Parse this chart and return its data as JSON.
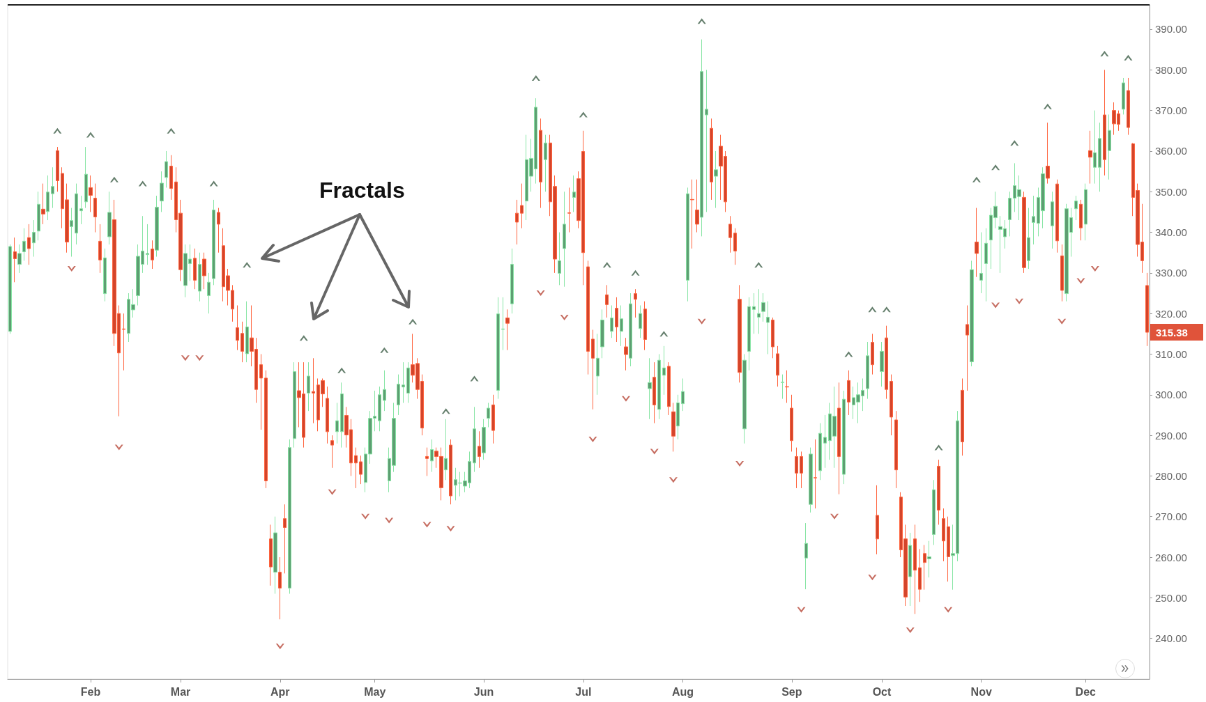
{
  "chart_data": {
    "type": "candlestick",
    "categories": [
      null,
      null,
      null,
      null,
      null,
      null,
      null,
      null,
      null,
      null,
      null,
      null,
      null,
      null,
      null,
      null,
      null,
      "Feb",
      null,
      null,
      null,
      null,
      null,
      null,
      null,
      null,
      null,
      null,
      null,
      null,
      null,
      null,
      null,
      null,
      null,
      null,
      "Mar",
      null,
      null,
      null,
      null,
      null,
      null,
      null,
      null,
      null,
      null,
      null,
      null,
      null,
      null,
      null,
      null,
      null,
      null,
      null,
      null,
      "Apr",
      null,
      null,
      null,
      null,
      null,
      null,
      null,
      null,
      null,
      null,
      null,
      null,
      null,
      null,
      null,
      null,
      null,
      null,
      null,
      "May",
      null,
      null,
      null,
      null,
      null,
      null,
      null,
      null,
      null,
      null,
      null,
      null,
      null,
      null,
      null,
      null,
      null,
      null,
      null,
      null,
      null,
      null,
      "Jun",
      null,
      null,
      null,
      null,
      null,
      null,
      null,
      null,
      null,
      null,
      null,
      null,
      null,
      null,
      null,
      null,
      null,
      null,
      null,
      null,
      "Jul",
      null,
      null,
      null,
      null,
      null,
      null,
      null,
      null,
      null,
      null,
      null,
      null,
      null,
      null,
      null,
      null,
      null,
      null,
      null,
      null,
      "Aug",
      null,
      null,
      null,
      null,
      null,
      null,
      null,
      null,
      null,
      null,
      null,
      null,
      null,
      null,
      null,
      null,
      null,
      null,
      null,
      null,
      null,
      null,
      "Sep",
      null,
      null,
      null,
      null,
      null,
      null,
      null,
      null,
      null,
      null,
      null,
      null,
      null,
      null,
      null,
      null,
      null,
      null,
      "Oct",
      null,
      null,
      null,
      null,
      null,
      null,
      null,
      null,
      null,
      null,
      null,
      null,
      null,
      null,
      null,
      null,
      null,
      null,
      null,
      null,
      "Nov",
      null,
      null,
      null,
      null,
      null,
      null,
      null,
      null,
      null,
      null,
      null,
      null,
      null,
      null,
      null,
      null,
      null,
      null,
      null,
      null,
      null,
      "Dec",
      null,
      null,
      null,
      null,
      null,
      null,
      null,
      null,
      null,
      null,
      null,
      null,
      null
    ],
    "ohlc": [
      [
        315.6,
        337,
        315,
        336.5
      ],
      [
        335.2,
        338.7,
        327.7,
        333.5
      ],
      [
        332.1,
        337,
        330,
        334.8
      ],
      [
        335.2,
        341,
        333,
        337.8
      ],
      [
        338.7,
        342,
        332,
        336
      ],
      [
        337.4,
        343,
        334,
        340
      ],
      [
        340.3,
        350,
        338,
        346.9
      ],
      [
        345.7,
        352,
        342,
        344.5
      ],
      [
        345.1,
        354,
        343,
        349.9
      ],
      [
        349.5,
        356,
        346,
        351.3
      ],
      [
        360.1,
        361,
        350,
        352.7
      ],
      [
        354.5,
        356,
        341,
        345.8
      ],
      [
        348,
        352,
        335,
        337.6
      ],
      [
        341.4,
        346,
        334,
        342.9
      ],
      [
        339.8,
        352,
        337,
        349.5
      ],
      [
        345.3,
        349,
        342,
        345.8
      ],
      [
        347.5,
        361,
        346,
        354.3
      ],
      [
        351,
        354,
        345,
        349.1
      ],
      [
        348.4,
        352,
        340,
        343.8
      ],
      [
        337.8,
        342,
        330,
        333.2
      ],
      [
        324.9,
        336,
        323,
        333.7
      ],
      [
        338.9,
        350,
        337,
        344.9
      ],
      [
        343.1,
        348,
        312,
        315.1
      ],
      [
        320,
        322,
        294.7,
        310.3
      ],
      [
        316.2,
        320,
        306,
        316.1
      ],
      [
        315.1,
        325,
        313,
        323.5
      ],
      [
        320.9,
        326,
        319,
        322.2
      ],
      [
        324.4,
        337,
        322,
        334.1
      ],
      [
        332.1,
        344,
        330,
        335.4
      ],
      [
        334.5,
        342,
        332,
        334.8
      ],
      [
        335.9,
        338,
        331,
        333.2
      ],
      [
        335.6,
        349,
        334,
        346.2
      ],
      [
        347.7,
        355,
        345,
        352.1
      ],
      [
        353.5,
        360,
        351,
        357.4
      ],
      [
        356.3,
        359,
        348,
        350.8
      ],
      [
        352.4,
        356,
        340,
        343.1
      ],
      [
        344.7,
        348,
        328,
        330.8
      ],
      [
        326.9,
        337,
        324,
        334.8
      ],
      [
        332.3,
        337,
        328,
        333.4
      ],
      [
        333.6,
        336,
        326,
        328.2
      ],
      [
        325.5,
        335,
        323,
        332.1
      ],
      [
        333.4,
        335,
        326,
        329.3
      ],
      [
        324.4,
        330,
        320,
        327.7
      ],
      [
        328.6,
        348,
        327,
        345.5
      ],
      [
        344.9,
        346,
        335,
        342
      ],
      [
        336.7,
        341,
        323,
        326.6
      ],
      [
        329.3,
        331,
        322,
        325.7
      ],
      [
        325.7,
        327,
        318,
        321.1
      ],
      [
        316.5,
        322,
        311,
        313.4
      ],
      [
        315.1,
        318,
        308,
        310.7
      ],
      [
        310.1,
        323,
        308,
        316.7
      ],
      [
        314,
        322,
        307,
        310.7
      ],
      [
        311.2,
        314,
        298,
        301.3
      ],
      [
        307.4,
        310,
        291.4,
        304.1
      ],
      [
        304.1,
        306,
        277,
        278.8
      ],
      [
        264.5,
        268,
        253,
        257.6
      ],
      [
        256.3,
        270,
        251,
        266
      ],
      [
        256.3,
        260,
        244.7,
        252.4
      ],
      [
        269.5,
        273,
        256,
        267.3
      ],
      [
        252.4,
        289,
        251,
        287
      ],
      [
        289.2,
        308,
        287,
        305.7
      ],
      [
        301,
        308,
        292,
        299.3
      ],
      [
        300.2,
        308,
        287,
        289.5
      ],
      [
        300.4,
        308,
        296,
        304.6
      ],
      [
        300.8,
        309,
        293,
        300.4
      ],
      [
        302.4,
        304,
        291,
        293.8
      ],
      [
        303.5,
        304,
        297,
        300.2
      ],
      [
        299.1,
        302,
        288,
        290.9
      ],
      [
        288.7,
        290,
        282,
        287.6
      ],
      [
        290.9,
        298,
        288,
        293.6
      ],
      [
        290.9,
        303,
        287,
        300.2
      ],
      [
        294.9,
        297,
        287,
        290.1
      ],
      [
        291.4,
        294,
        280,
        283.2
      ],
      [
        285,
        287,
        277,
        283.2
      ],
      [
        283.5,
        285,
        278,
        280.4
      ],
      [
        278.4,
        287,
        276,
        285.4
      ],
      [
        285.4,
        296,
        283,
        294.2
      ],
      [
        294.2,
        301,
        291,
        294.7
      ],
      [
        293.6,
        302,
        291,
        300
      ],
      [
        298.6,
        306,
        296,
        301.3
      ],
      [
        278.8,
        287,
        276,
        284.3
      ],
      [
        282.6,
        298,
        281,
        294.2
      ],
      [
        297.5,
        305,
        295,
        302.6
      ],
      [
        301.9,
        308,
        298,
        302.4
      ],
      [
        300.4,
        308,
        298,
        306.6
      ],
      [
        307.4,
        315,
        303,
        304.8
      ],
      [
        307.7,
        309,
        299,
        301.3
      ],
      [
        303.3,
        305,
        290,
        291.8
      ],
      [
        284.8,
        287,
        280,
        284.3
      ],
      [
        283.7,
        289,
        281,
        286.5
      ],
      [
        286.1,
        287,
        282,
        284.8
      ],
      [
        284.8,
        287,
        274,
        277.1
      ],
      [
        281.5,
        294,
        279,
        284.3
      ],
      [
        287.6,
        289,
        273,
        275.1
      ],
      [
        277.7,
        282,
        274,
        279.1
      ],
      [
        278.2,
        281,
        275,
        278.3
      ],
      [
        277.5,
        281,
        276,
        278.8
      ],
      [
        278.3,
        286,
        277,
        283.6
      ],
      [
        283.2,
        297,
        281,
        291.6
      ],
      [
        287.3,
        291,
        282,
        284.8
      ],
      [
        285.7,
        294,
        284,
        292
      ],
      [
        294.2,
        298,
        292,
        296.7
      ],
      [
        297.5,
        300,
        288,
        291.2
      ],
      [
        301.1,
        324,
        299,
        319.9
      ],
      [
        316.1,
        324,
        311,
        316.2
      ],
      [
        318.9,
        321,
        311,
        317.6
      ],
      [
        322.4,
        336,
        320,
        332.1
      ],
      [
        344.7,
        348,
        337,
        342.5
      ],
      [
        346.6,
        352,
        341,
        344.7
      ],
      [
        347.7,
        364,
        343,
        357.9
      ],
      [
        353.8,
        363,
        350,
        358.2
      ],
      [
        355.6,
        373,
        352,
        370.8
      ],
      [
        365.1,
        368,
        346,
        352.4
      ],
      [
        357.9,
        364,
        350,
        362
      ],
      [
        362,
        364,
        344,
        347.5
      ],
      [
        351.3,
        354,
        330,
        333.4
      ],
      [
        329.9,
        340,
        327,
        333
      ],
      [
        336,
        350,
        326.6,
        342
      ],
      [
        344.8,
        351,
        340,
        344.7
      ],
      [
        348.6,
        354,
        345,
        349.9
      ],
      [
        353.2,
        355,
        341,
        342.9
      ],
      [
        359.9,
        365,
        327,
        335
      ],
      [
        331.5,
        333,
        305,
        310.7
      ],
      [
        313.7,
        316,
        296.4,
        309
      ],
      [
        304.6,
        315,
        300,
        309
      ],
      [
        311.8,
        321,
        309,
        318.4
      ],
      [
        324.6,
        327,
        319,
        322.2
      ],
      [
        315.6,
        322,
        314,
        318.9
      ],
      [
        321.3,
        324,
        313,
        316.7
      ],
      [
        315.6,
        322,
        312,
        318.7
      ],
      [
        311.8,
        314,
        306,
        309.9
      ],
      [
        309,
        325,
        307,
        322.4
      ],
      [
        324.9,
        326,
        319,
        323.5
      ],
      [
        316.3,
        322,
        314,
        320
      ],
      [
        321.1,
        323,
        311,
        313.6
      ],
      [
        301.5,
        309,
        294,
        303
      ],
      [
        304.3,
        308,
        293,
        297.5
      ],
      [
        296.4,
        310,
        294,
        308.5
      ],
      [
        304.8,
        312,
        300,
        306.6
      ],
      [
        307,
        308,
        295,
        297.1
      ],
      [
        295.8,
        298,
        286,
        289.8
      ],
      [
        292.3,
        300,
        289,
        298
      ],
      [
        297.8,
        304,
        296,
        300.8
      ],
      [
        328.2,
        351,
        323,
        349.5
      ],
      [
        348.1,
        353,
        336,
        348
      ],
      [
        345.5,
        353,
        340,
        342
      ],
      [
        343.7,
        387.5,
        339,
        379.6
      ],
      [
        368.9,
        380,
        345,
        370.3
      ],
      [
        365.6,
        368,
        348,
        352.4
      ],
      [
        353.8,
        360,
        346,
        355.4
      ],
      [
        361.2,
        364,
        348,
        356.3
      ],
      [
        358.7,
        360,
        345,
        347.5
      ],
      [
        342,
        344,
        335,
        338.7
      ],
      [
        339.8,
        341,
        332,
        335.4
      ],
      [
        323.5,
        327,
        303,
        305.5
      ],
      [
        291.6,
        310,
        288,
        308.5
      ],
      [
        310.7,
        324,
        306,
        321.7
      ],
      [
        321,
        325,
        315,
        321.7
      ],
      [
        319.1,
        326,
        315,
        320
      ],
      [
        320.5,
        325,
        318,
        322.7
      ],
      [
        317.8,
        323,
        310,
        319.1
      ],
      [
        318.4,
        319,
        309,
        311.8
      ],
      [
        310.1,
        312,
        302,
        304.8
      ],
      [
        303,
        305,
        299,
        303.1
      ],
      [
        302,
        306,
        298,
        301.9
      ],
      [
        296.7,
        300,
        286,
        288.7
      ],
      [
        284.8,
        287,
        277,
        280.7
      ],
      [
        284.8,
        286,
        277,
        280.7
      ],
      [
        259.8,
        268.4,
        252.1,
        263.4
      ],
      [
        273,
        287,
        271,
        285.4
      ],
      [
        279.6,
        289,
        272,
        279.5
      ],
      [
        281.3,
        293,
        279,
        290.5
      ],
      [
        288.1,
        295,
        282,
        289.5
      ],
      [
        288.7,
        298,
        284,
        295.3
      ],
      [
        289.8,
        302,
        282,
        294.7
      ],
      [
        296.7,
        303,
        275.5,
        284.8
      ],
      [
        280.4,
        301,
        278,
        298.9
      ],
      [
        303.5,
        306,
        295,
        298.2
      ],
      [
        297.5,
        302,
        294,
        299.3
      ],
      [
        298.2,
        303,
        293,
        300
      ],
      [
        299.7,
        304,
        296,
        301.1
      ],
      [
        301.5,
        313,
        299,
        309.6
      ],
      [
        312.9,
        315,
        305,
        307.4
      ],
      [
        270.3,
        277.7,
        260.7,
        264.5
      ],
      [
        305.7,
        313,
        302,
        310.7
      ],
      [
        314,
        317,
        299,
        301.3
      ],
      [
        303.3,
        305,
        290,
        294.5
      ],
      [
        293.8,
        296,
        277,
        281.5
      ],
      [
        274.8,
        276,
        260,
        261.8
      ],
      [
        264.5,
        268,
        248,
        250.2
      ],
      [
        255.2,
        266,
        248,
        262.9
      ],
      [
        264.5,
        268,
        246,
        256.8
      ],
      [
        257.4,
        262,
        249,
        252.1
      ],
      [
        260.9,
        263,
        252,
        258.7
      ],
      [
        259.6,
        264,
        255,
        260.1
      ],
      [
        265.6,
        279,
        263,
        276.6
      ],
      [
        282.4,
        284,
        268,
        271.6
      ],
      [
        269.5,
        272,
        259,
        264
      ],
      [
        267.5,
        270,
        254,
        260.1
      ],
      [
        260.4,
        268,
        252,
        260.9
      ],
      [
        260.9,
        296,
        259,
        293.6
      ],
      [
        301.1,
        304,
        285,
        288.4
      ],
      [
        317.3,
        322,
        301,
        314.7
      ],
      [
        308.1,
        333,
        307,
        330.8
      ],
      [
        337.6,
        346,
        329,
        334.8
      ],
      [
        328.2,
        340,
        325,
        329.9
      ],
      [
        332.3,
        341,
        323,
        337.3
      ],
      [
        338.1,
        346,
        331,
        344.2
      ],
      [
        343.6,
        350,
        341,
        346.4
      ],
      [
        340.7,
        344,
        330,
        341.4
      ],
      [
        338.9,
        343,
        336,
        340.9
      ],
      [
        343.1,
        350,
        339,
        348.4
      ],
      [
        348.4,
        357,
        345,
        351.5
      ],
      [
        348.8,
        354,
        343,
        350.5
      ],
      [
        348.6,
        350,
        330,
        331.3
      ],
      [
        333,
        346,
        331,
        338.7
      ],
      [
        342.4,
        349,
        337,
        343.9
      ],
      [
        342.2,
        351,
        339,
        348.6
      ],
      [
        345.3,
        356,
        341,
        354.4
      ],
      [
        356.3,
        367,
        352,
        353.3
      ],
      [
        341.6,
        350,
        336,
        347.5
      ],
      [
        351.9,
        353,
        335,
        337.9
      ],
      [
        334.2,
        337,
        323,
        325.7
      ],
      [
        324.9,
        347,
        323,
        345.8
      ],
      [
        340,
        346,
        334,
        343.6
      ],
      [
        345.8,
        349,
        343,
        347.7
      ],
      [
        346.9,
        348,
        338,
        341.1
      ],
      [
        342,
        352,
        338,
        350.5
      ],
      [
        360.1,
        365,
        352,
        358.5
      ],
      [
        356,
        370,
        352,
        359.6
      ],
      [
        356,
        367,
        350,
        363.1
      ],
      [
        368.9,
        380,
        354,
        357.9
      ],
      [
        360.1,
        369,
        353,
        365.1
      ],
      [
        370,
        372,
        364,
        366.7
      ],
      [
        369.2,
        370,
        365,
        366.6
      ],
      [
        370.3,
        378,
        369,
        376.8
      ],
      [
        374.9,
        378,
        364,
        365.8
      ],
      [
        361.8,
        362,
        344,
        348.6
      ],
      [
        350.3,
        352,
        334,
        337
      ],
      [
        337.6,
        347,
        330,
        333
      ],
      [
        326.9,
        330,
        312,
        315.38
      ]
    ],
    "colors": [
      "#5e9e72",
      "#d4452b",
      "#5e9e72",
      "#5e9e72",
      "#d4452b",
      "#5e9e72",
      "#5e9e72",
      "#d4452b",
      "#5e9e72",
      "#5e9e72",
      "#d4452b",
      "#d4452b",
      "#d4452b",
      "#5e9e72",
      "#5e9e72",
      "#5e9e72",
      "#5e9e72",
      "#d4452b",
      "#d4452b",
      "#d4452b",
      "#5e9e72",
      "#5e9e72",
      "#d4452b",
      "#d4452b",
      "#d4452b",
      "#5e9e72",
      "#5e9e72",
      "#5e9e72",
      "#5e9e72",
      "#5e9e72",
      "#d4452b",
      "#5e9e72",
      "#5e9e72",
      "#5e9e72",
      "#d4452b",
      "#d4452b",
      "#d4452b",
      "#5e9e72",
      "#5e9e72",
      "#d4452b",
      "#5e9e72",
      "#d4452b",
      "#5e9e72",
      "#5e9e72",
      "#d4452b",
      "#d4452b",
      "#d4452b",
      "#d4452b",
      "#d4452b",
      "#d4452b",
      "#5e9e72",
      "#d4452b",
      "#d4452b",
      "#d4452b",
      "#d4452b",
      "#d4452b",
      "#5e9e72",
      "#d4452b",
      "#d4452b",
      "#5e9e72",
      "#5e9e72",
      "#d4452b",
      "#d4452b",
      "#5e9e72",
      "#d4452b",
      "#d4452b",
      "#d4452b",
      "#d4452b",
      "#d4452b",
      "#5e9e72",
      "#5e9e72",
      "#d4452b",
      "#d4452b",
      "#d4452b",
      "#d4452b",
      "#5e9e72",
      "#5e9e72",
      "#5e9e72",
      "#5e9e72",
      "#5e9e72",
      "#5e9e72",
      "#5e9e72",
      "#5e9e72",
      "#5e9e72",
      "#5e9e72",
      "#d4452b",
      "#d4452b",
      "#d4452b",
      "#d4452b",
      "#5e9e72",
      "#d4452b",
      "#d4452b",
      "#5e9e72",
      "#d4452b",
      "#5e9e72",
      "#5e9e72",
      "#5e9e72",
      "#5e9e72",
      "#5e9e72",
      "#d4452b",
      "#5e9e72",
      "#5e9e72",
      "#d4452b",
      "#5e9e72",
      "#5e9e72",
      "#d4452b",
      "#5e9e72",
      "#d4452b",
      "#d4452b",
      "#5e9e72",
      "#5e9e72",
      "#5e9e72",
      "#d4452b",
      "#5e9e72",
      "#d4452b",
      "#d4452b",
      "#5e9e72",
      "#5e9e72",
      "#d4452b",
      "#5e9e72",
      "#d4452b",
      "#d4452b",
      "#d4452b",
      "#d4452b",
      "#5e9e72",
      "#5e9e72",
      "#d4452b",
      "#5e9e72",
      "#d4452b",
      "#5e9e72",
      "#d4452b",
      "#5e9e72",
      "#d4452b",
      "#5e9e72",
      "#d4452b",
      "#5e9e72",
      "#d4452b",
      "#5e9e72",
      "#5e9e72",
      "#d4452b",
      "#d4452b",
      "#5e9e72",
      "#5e9e72",
      "#5e9e72",
      "#d4452b",
      "#d4452b",
      "#5e9e72",
      "#5e9e72",
      "#d4452b",
      "#5e9e72",
      "#d4452b",
      "#d4452b",
      "#d4452b",
      "#d4452b",
      "#d4452b",
      "#5e9e72",
      "#5e9e72",
      "#5e9e72",
      "#5e9e72",
      "#5e9e72",
      "#5e9e72",
      "#d4452b",
      "#d4452b",
      "#5e9e72",
      "#d4452b",
      "#d4452b",
      "#d4452b",
      "#d4452b",
      "#5e9e72",
      "#5e9e72",
      "#d4452b",
      "#5e9e72",
      "#5e9e72",
      "#5e9e72",
      "#5e9e72",
      "#d4452b",
      "#5e9e72",
      "#d4452b",
      "#5e9e72",
      "#5e9e72",
      "#5e9e72",
      "#5e9e72",
      "#d4452b",
      "#d4452b",
      "#5e9e72",
      "#d4452b",
      "#d4452b",
      "#d4452b",
      "#d4452b",
      "#d4452b",
      "#5e9e72",
      "#d4452b",
      "#d4452b",
      "#d4452b",
      "#5e9e72",
      "#5e9e72",
      "#d4452b",
      "#d4452b",
      "#d4452b",
      "#5e9e72",
      "#5e9e72",
      "#d4452b",
      "#d4452b",
      "#5e9e72",
      "#d4452b",
      "#5e9e72",
      "#5e9e72",
      "#5e9e72",
      "#5e9e72",
      "#5e9e72",
      "#5e9e72",
      "#5e9e72",
      "#5e9e72",
      "#5e9e72",
      "#d4452b",
      "#5e9e72",
      "#5e9e72",
      "#5e9e72",
      "#5e9e72",
      "#d4452b",
      "#5e9e72",
      "#d4452b",
      "#d4452b",
      "#5e9e72",
      "#5e9e72",
      "#5e9e72",
      "#d4452b",
      "#5e9e72",
      "#d4452b",
      "#5e9e72",
      "#5e9e72",
      "#d4452b",
      "#5e9e72",
      "#d4452b",
      "#d4452b",
      "#5e9e72",
      "#d4452b",
      "#d4452b",
      "#d4452b",
      "#d4452b",
      "#d4452b"
    ],
    "series": [
      {
        "type": "scatter",
        "marker": "triangle",
        "color": "#3e5f48",
        "values": [
          null,
          null,
          null,
          null,
          null,
          null,
          null,
          null,
          null,
          null,
          365,
          null,
          null,
          null,
          null,
          null,
          null,
          364,
          null,
          null,
          null,
          null,
          353,
          null,
          null,
          null,
          null,
          null,
          352,
          null,
          null,
          null,
          null,
          null,
          365,
          null,
          null,
          null,
          null,
          null,
          null,
          null,
          null,
          352,
          null,
          null,
          null,
          null,
          null,
          null,
          332,
          null,
          null,
          null,
          null,
          null,
          null,
          null,
          null,
          null,
          null,
          null,
          314,
          null,
          null,
          null,
          null,
          null,
          null,
          null,
          306,
          null,
          null,
          null,
          null,
          null,
          null,
          null,
          null,
          311,
          null,
          null,
          null,
          null,
          null,
          318,
          null,
          null,
          null,
          null,
          null,
          null,
          296,
          null,
          null,
          null,
          null,
          null,
          304,
          null,
          null,
          null,
          null,
          null,
          null,
          null,
          null,
          null,
          null,
          null,
          null,
          378,
          null,
          null,
          null,
          null,
          null,
          null,
          null,
          null,
          null,
          369,
          null,
          null,
          null,
          null,
          332,
          null,
          null,
          null,
          null,
          null,
          330,
          null,
          null,
          null,
          null,
          null,
          315,
          null,
          null,
          null,
          null,
          null,
          null,
          null,
          392,
          null,
          null,
          null,
          null,
          null,
          null,
          null,
          null,
          null,
          null,
          null,
          332,
          null,
          null,
          null,
          null,
          null,
          null,
          null,
          null,
          null,
          null,
          null,
          null,
          null,
          null,
          null,
          null,
          null,
          null,
          310,
          null,
          null,
          null,
          null,
          321,
          null,
          null,
          321,
          null,
          null,
          null,
          null,
          null,
          null,
          null,
          null,
          null,
          null,
          287,
          null,
          null,
          null,
          null,
          null,
          null,
          null,
          353,
          null,
          null,
          null,
          356,
          null,
          null,
          null,
          362,
          null,
          null,
          null,
          null,
          null,
          null,
          371,
          null,
          null,
          null,
          null,
          null,
          null,
          null,
          null,
          null,
          null,
          null,
          384,
          null,
          null,
          null,
          null,
          383,
          null,
          null,
          null,
          null
        ]
      },
      {
        "type": "scatter",
        "marker": "triangle",
        "color": "#b8483a",
        "values": [
          null,
          null,
          null,
          null,
          null,
          null,
          null,
          null,
          null,
          null,
          null,
          null,
          null,
          331,
          null,
          null,
          null,
          null,
          null,
          null,
          null,
          null,
          null,
          287,
          null,
          null,
          null,
          null,
          null,
          null,
          null,
          null,
          null,
          null,
          null,
          null,
          null,
          309,
          null,
          null,
          309,
          null,
          null,
          null,
          null,
          null,
          null,
          null,
          null,
          null,
          null,
          null,
          null,
          null,
          null,
          null,
          null,
          238,
          null,
          null,
          null,
          null,
          null,
          null,
          null,
          null,
          null,
          null,
          276,
          null,
          null,
          null,
          null,
          null,
          null,
          270,
          null,
          null,
          null,
          null,
          269,
          null,
          null,
          null,
          null,
          null,
          null,
          null,
          268,
          null,
          null,
          null,
          null,
          267,
          null,
          null,
          null,
          null,
          null,
          null,
          null,
          null,
          null,
          null,
          null,
          null,
          null,
          null,
          null,
          null,
          null,
          null,
          325,
          null,
          null,
          null,
          null,
          319,
          null,
          null,
          null,
          null,
          null,
          289,
          null,
          null,
          null,
          null,
          null,
          null,
          299,
          null,
          null,
          null,
          null,
          null,
          286,
          null,
          null,
          null,
          279,
          null,
          null,
          null,
          null,
          null,
          318,
          null,
          null,
          null,
          null,
          null,
          null,
          null,
          283,
          null,
          null,
          null,
          null,
          null,
          null,
          null,
          null,
          null,
          null,
          null,
          null,
          247,
          null,
          null,
          null,
          null,
          null,
          null,
          270,
          null,
          null,
          null,
          null,
          null,
          null,
          null,
          255,
          null,
          null,
          null,
          null,
          null,
          null,
          null,
          242,
          null,
          null,
          null,
          null,
          null,
          null,
          null,
          247,
          null,
          null,
          null,
          null,
          null,
          null,
          null,
          null,
          null,
          322,
          null,
          null,
          null,
          null,
          323,
          null,
          null,
          null,
          null,
          null,
          null,
          null,
          null,
          318,
          null,
          null,
          null,
          328,
          null,
          null,
          331,
          null,
          null,
          null,
          null,
          null,
          null,
          null,
          null,
          null,
          null,
          null
        ]
      }
    ],
    "ylim": [
      230,
      396
    ],
    "yticks": [
      {
        "value": 240,
        "label": "240.00"
      },
      {
        "value": 250,
        "label": "250.00"
      },
      {
        "value": 260,
        "label": "260.00"
      },
      {
        "value": 270,
        "label": "270.00"
      },
      {
        "value": 280,
        "label": "280.00"
      },
      {
        "value": 290,
        "label": "290.00"
      },
      {
        "value": 300,
        "label": "300.00"
      },
      {
        "value": 310,
        "label": "310.00"
      },
      {
        "value": 320,
        "label": "320.00"
      },
      {
        "value": 330,
        "label": "330.00"
      },
      {
        "value": 340,
        "label": "340.00"
      },
      {
        "value": 350,
        "label": "350.00"
      },
      {
        "value": 360,
        "label": "360.00"
      },
      {
        "value": 370,
        "label": "370.00"
      },
      {
        "value": 380,
        "label": "380.00"
      },
      {
        "value": 390,
        "label": "390.00"
      }
    ],
    "annotations": [
      "Fractals",
      "315.38"
    ]
  }
}
